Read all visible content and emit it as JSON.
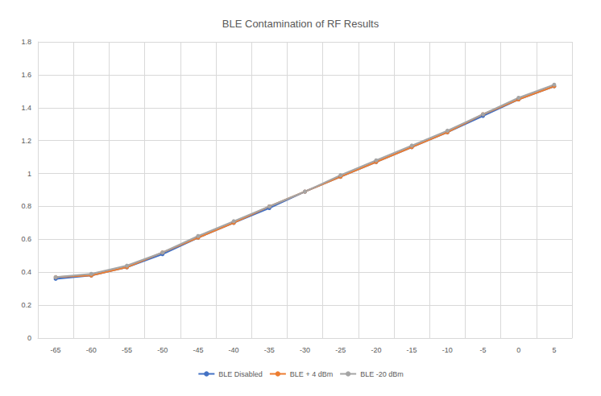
{
  "chart_data": {
    "type": "line",
    "title": "BLE Contamination of RF Results",
    "categories": [
      "-65",
      "-60",
      "-55",
      "-50",
      "-45",
      "-40",
      "-35",
      "-30",
      "-25",
      "-20",
      "-15",
      "-10",
      "-5",
      "0",
      "5"
    ],
    "series": [
      {
        "name": "BLE Disabled",
        "color": "#4472c4",
        "marker": "circle",
        "line_style": "solid",
        "values": [
          0.36,
          0.38,
          0.43,
          0.51,
          0.61,
          0.7,
          0.79,
          0.89,
          0.98,
          1.07,
          1.16,
          1.25,
          1.35,
          1.45,
          1.53
        ]
      },
      {
        "name": "BLE + 4 dBm",
        "color": "#ed7d31",
        "marker": "circle",
        "line_style": "solid",
        "values": [
          0.37,
          0.38,
          0.43,
          0.52,
          0.61,
          0.7,
          0.8,
          0.89,
          0.98,
          1.07,
          1.16,
          1.25,
          1.36,
          1.45,
          1.53
        ]
      },
      {
        "name": "BLE -20 dBm",
        "color": "#a5a5a5",
        "marker": "circle",
        "line_style": "solid",
        "values": [
          0.37,
          0.39,
          0.44,
          0.52,
          0.62,
          0.71,
          0.8,
          0.89,
          0.99,
          1.08,
          1.17,
          1.26,
          1.36,
          1.46,
          1.54
        ]
      }
    ],
    "ylim": [
      0,
      1.8
    ],
    "yticks": [
      0,
      0.2,
      0.4,
      0.6,
      0.8,
      1,
      1.2,
      1.4,
      1.6,
      1.8
    ],
    "grid": true,
    "legend": "bottom"
  }
}
